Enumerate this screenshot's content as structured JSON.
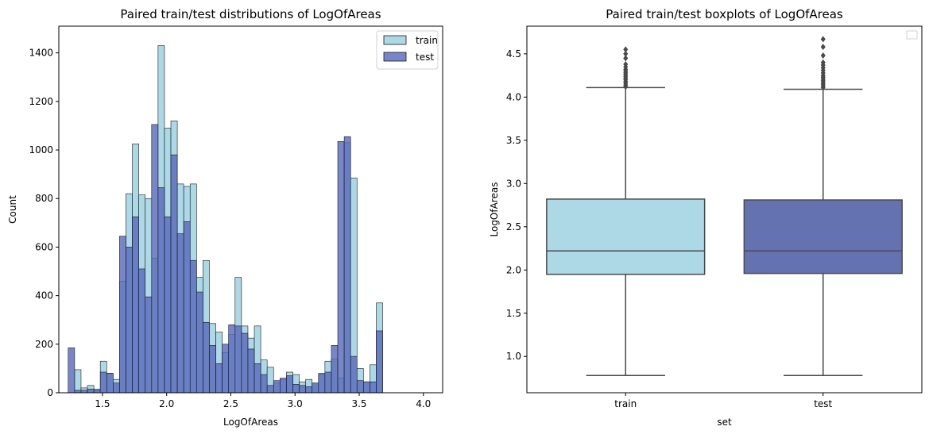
{
  "colors": {
    "train": "#add8e6",
    "test": "#5a6bbd",
    "test_box": "#6472b2",
    "edge": "#1a1a1a",
    "whisker": "#4a4a4a"
  },
  "chart_data": [
    {
      "type": "histogram",
      "title": "Paired train/test distributions of LogOfAreas",
      "xlabel": "LogOfAreas",
      "ylabel": "Count",
      "xlim": [
        1.16,
        4.15
      ],
      "ylim": [
        0,
        1510
      ],
      "xticks": [
        1.5,
        2.0,
        2.5,
        3.0,
        3.5,
        4.0
      ],
      "yticks": [
        0,
        200,
        400,
        600,
        800,
        1000,
        1200,
        1400
      ],
      "legend": {
        "position": "top-right",
        "entries": [
          "train",
          "test"
        ]
      },
      "bin_start": 1.233,
      "bin_width": 0.05,
      "series": [
        {
          "name": "train",
          "values": [
            0,
            95,
            20,
            30,
            15,
            130,
            80,
            55,
            460,
            820,
            1025,
            815,
            800,
            555,
            1430,
            1090,
            1120,
            860,
            850,
            860,
            475,
            545,
            285,
            250,
            165,
            240,
            475,
            275,
            225,
            275,
            135,
            105,
            40,
            55,
            85,
            75,
            45,
            55,
            40,
            75,
            130,
            140,
            60,
            1030,
            885,
            100,
            45,
            115,
            370
          ]
        },
        {
          "name": "test",
          "values": [
            185,
            10,
            10,
            15,
            10,
            85,
            80,
            40,
            645,
            600,
            725,
            510,
            395,
            1105,
            845,
            725,
            980,
            655,
            705,
            545,
            415,
            290,
            195,
            120,
            200,
            280,
            275,
            245,
            180,
            120,
            75,
            30,
            50,
            60,
            70,
            35,
            30,
            25,
            40,
            80,
            85,
            195,
            1035,
            1055,
            150,
            50,
            45,
            45,
            255
          ]
        }
      ]
    },
    {
      "type": "box",
      "title": "Paired train/test boxplots of LogOfAreas",
      "xlabel": "set",
      "ylabel": "LogOfAreas",
      "ylim": [
        0.58,
        4.82
      ],
      "yticks": [
        1.0,
        1.5,
        2.0,
        2.5,
        3.0,
        3.5,
        4.0,
        4.5
      ],
      "categories": [
        "train",
        "test"
      ],
      "boxes": [
        {
          "name": "train",
          "whisker_low": 0.78,
          "q1": 1.95,
          "median": 2.22,
          "q3": 2.82,
          "whisker_high": 4.11,
          "outliers": [
            4.12,
            4.14,
            4.16,
            4.18,
            4.2,
            4.22,
            4.24,
            4.26,
            4.28,
            4.3,
            4.32,
            4.35,
            4.38,
            4.45,
            4.5,
            4.55
          ]
        },
        {
          "name": "test",
          "whisker_low": 0.78,
          "q1": 1.96,
          "median": 2.22,
          "q3": 2.81,
          "whisker_high": 4.09,
          "outliers": [
            4.11,
            4.13,
            4.15,
            4.17,
            4.19,
            4.21,
            4.23,
            4.25,
            4.28,
            4.31,
            4.34,
            4.37,
            4.4,
            4.48,
            4.58,
            4.67
          ]
        }
      ]
    }
  ]
}
